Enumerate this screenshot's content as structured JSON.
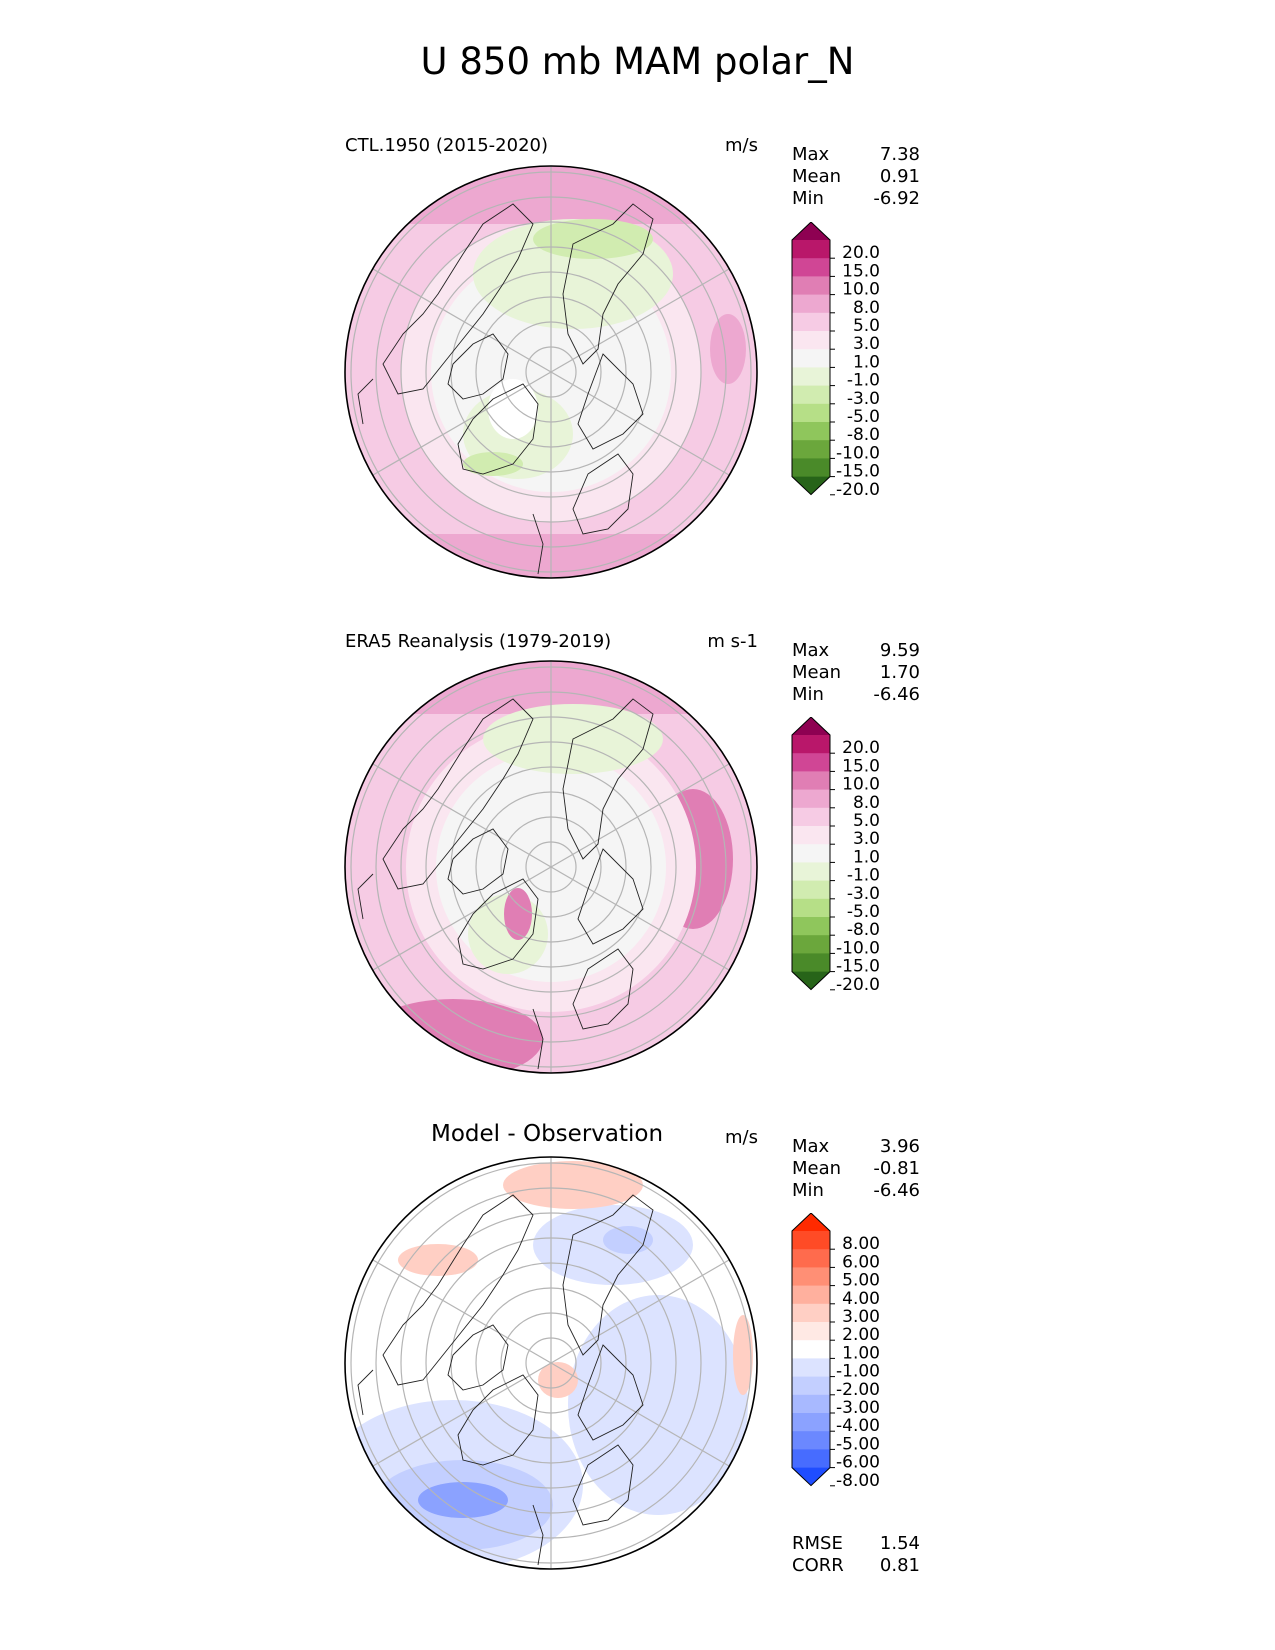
{
  "title": "U 850 mb MAM polar_N",
  "chart_data": [
    {
      "type": "heatmap",
      "title": "CTL.1950 (2015-2020)",
      "units": "m/s",
      "stats": [
        {
          "label": "Max",
          "value": "7.38"
        },
        {
          "label": "Mean",
          "value": "0.91"
        },
        {
          "label": "Min",
          "value": "-6.92"
        }
      ],
      "colorbar": {
        "ticks": [
          "20.0",
          "15.0",
          "10.0",
          "8.0",
          "5.0",
          "3.0",
          "1.0",
          "-1.0",
          "-3.0",
          "-5.0",
          "-8.0",
          "-10.0",
          "-15.0",
          "-20.0"
        ],
        "colors": [
          "#8e0152",
          "#b9176a",
          "#d04695",
          "#e07eb4",
          "#eda8d0",
          "#f6cbe4",
          "#fae6f0",
          "#f5f5f5",
          "#e8f4d8",
          "#d1ecb0",
          "#b6df87",
          "#8fc65c",
          "#6ba73c",
          "#4a8a29",
          "#276419"
        ]
      }
    },
    {
      "type": "heatmap",
      "title": "ERA5 Reanalysis (1979-2019)",
      "units": "m s-1",
      "stats": [
        {
          "label": "Max",
          "value": "9.59"
        },
        {
          "label": "Mean",
          "value": "1.70"
        },
        {
          "label": "Min",
          "value": "-6.46"
        }
      ],
      "colorbar": {
        "ticks": [
          "20.0",
          "15.0",
          "10.0",
          "8.0",
          "5.0",
          "3.0",
          "1.0",
          "-1.0",
          "-3.0",
          "-5.0",
          "-8.0",
          "-10.0",
          "-15.0",
          "-20.0"
        ],
        "colors": [
          "#8e0152",
          "#b9176a",
          "#d04695",
          "#e07eb4",
          "#eda8d0",
          "#f6cbe4",
          "#fae6f0",
          "#f5f5f5",
          "#e8f4d8",
          "#d1ecb0",
          "#b6df87",
          "#8fc65c",
          "#6ba73c",
          "#4a8a29",
          "#276419"
        ]
      }
    },
    {
      "type": "heatmap",
      "title": "Model - Observation",
      "units": "m/s",
      "stats": [
        {
          "label": "Max",
          "value": "3.96"
        },
        {
          "label": "Mean",
          "value": "-0.81"
        },
        {
          "label": "Min",
          "value": "-6.46"
        }
      ],
      "extra_stats": [
        {
          "label": "RMSE",
          "value": "1.54"
        },
        {
          "label": "CORR",
          "value": "0.81"
        }
      ],
      "colorbar": {
        "ticks": [
          "8.00",
          "6.00",
          "5.00",
          "4.00",
          "3.00",
          "2.00",
          "1.00",
          "-1.00",
          "-2.00",
          "-3.00",
          "-4.00",
          "-5.00",
          "-6.00",
          "-8.00"
        ],
        "colors": [
          "#ff2a00",
          "#ff4b26",
          "#ff6b4d",
          "#ff8f75",
          "#ffb09e",
          "#ffcfc4",
          "#ffe9e4",
          "#ffffff",
          "#dce3ff",
          "#c3cfff",
          "#a8b9ff",
          "#8ba2ff",
          "#6b88ff",
          "#476cff",
          "#1f4dff"
        ]
      }
    }
  ]
}
